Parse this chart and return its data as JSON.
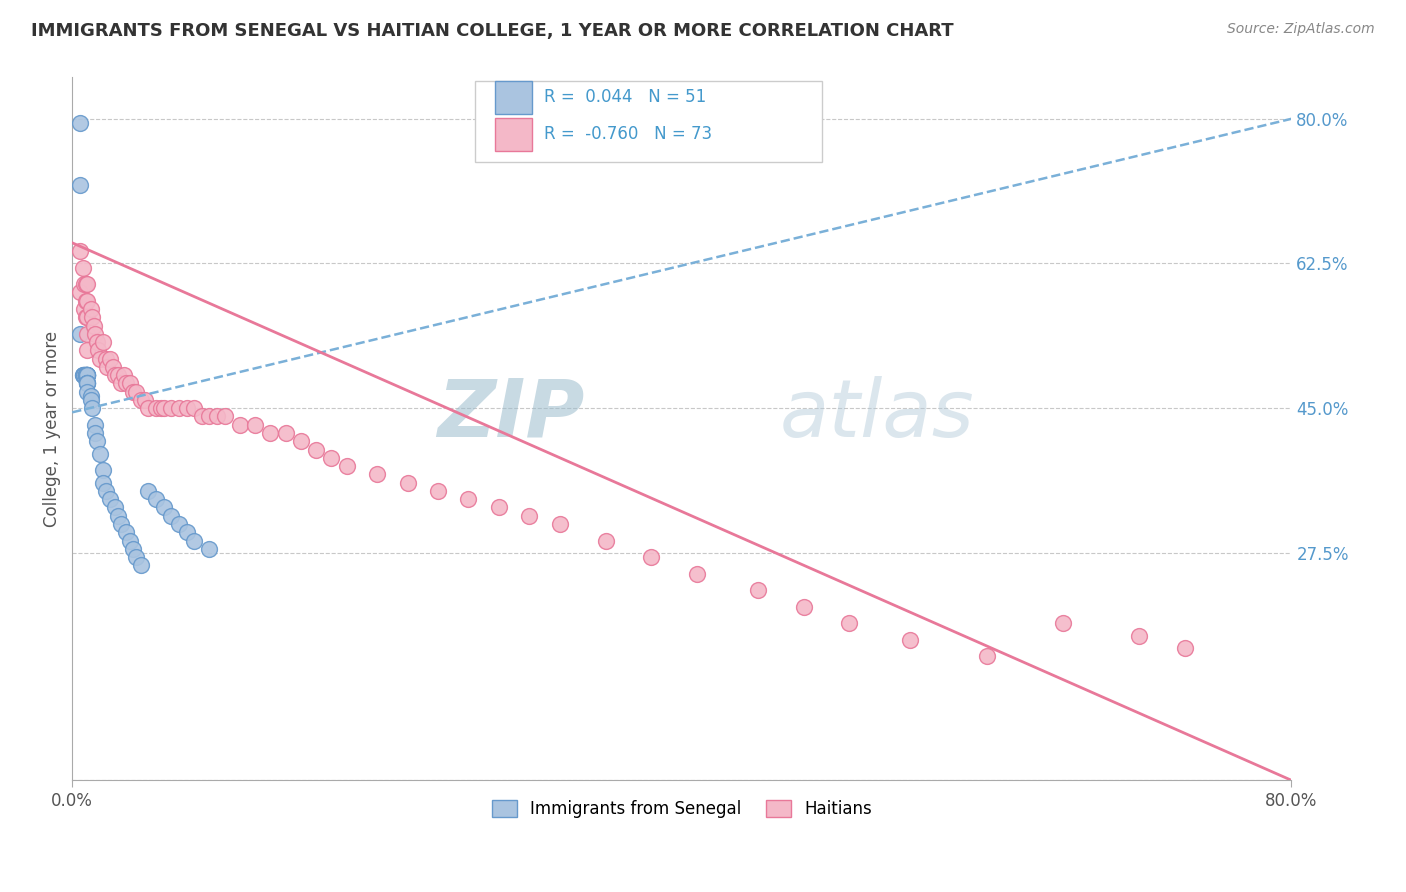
{
  "title": "IMMIGRANTS FROM SENEGAL VS HAITIAN COLLEGE, 1 YEAR OR MORE CORRELATION CHART",
  "source": "Source: ZipAtlas.com",
  "ylabel": "College, 1 year or more",
  "xlim": [
    0,
    0.8
  ],
  "ylim": [
    0,
    0.85
  ],
  "yticks_right": [
    0.0,
    0.275,
    0.45,
    0.625,
    0.8
  ],
  "yticklabels_right": [
    "",
    "27.5%",
    "45.0%",
    "62.5%",
    "80.0%"
  ],
  "grid_color": "#c8c8c8",
  "background_color": "#ffffff",
  "series1_label": "Immigrants from Senegal",
  "series1_color": "#aac4e0",
  "series1_edge_color": "#6699cc",
  "series1_R": "0.044",
  "series1_N": "51",
  "series2_label": "Haitians",
  "series2_color": "#f4b8c8",
  "series2_edge_color": "#e87899",
  "series2_R": "-0.760",
  "series2_N": "73",
  "watermark_color": "#ccdde8",
  "trendline1_color": "#7ab0d8",
  "trendline2_color": "#e87899",
  "series1_x": [
    0.005,
    0.005,
    0.005,
    0.007,
    0.007,
    0.008,
    0.008,
    0.008,
    0.009,
    0.009,
    0.009,
    0.009,
    0.009,
    0.01,
    0.01,
    0.01,
    0.01,
    0.01,
    0.01,
    0.01,
    0.01,
    0.01,
    0.01,
    0.01,
    0.012,
    0.012,
    0.013,
    0.015,
    0.015,
    0.016,
    0.018,
    0.02,
    0.02,
    0.022,
    0.025,
    0.028,
    0.03,
    0.032,
    0.035,
    0.038,
    0.04,
    0.042,
    0.045,
    0.05,
    0.055,
    0.06,
    0.065,
    0.07,
    0.075,
    0.08,
    0.09
  ],
  "series1_y": [
    0.795,
    0.72,
    0.54,
    0.49,
    0.49,
    0.49,
    0.49,
    0.49,
    0.49,
    0.49,
    0.49,
    0.49,
    0.49,
    0.49,
    0.49,
    0.49,
    0.49,
    0.49,
    0.49,
    0.48,
    0.48,
    0.48,
    0.48,
    0.47,
    0.465,
    0.46,
    0.45,
    0.43,
    0.42,
    0.41,
    0.395,
    0.375,
    0.36,
    0.35,
    0.34,
    0.33,
    0.32,
    0.31,
    0.3,
    0.29,
    0.28,
    0.27,
    0.26,
    0.35,
    0.34,
    0.33,
    0.32,
    0.31,
    0.3,
    0.29,
    0.28
  ],
  "series2_x": [
    0.005,
    0.005,
    0.007,
    0.008,
    0.008,
    0.009,
    0.009,
    0.009,
    0.01,
    0.01,
    0.01,
    0.01,
    0.01,
    0.012,
    0.013,
    0.014,
    0.015,
    0.016,
    0.017,
    0.018,
    0.02,
    0.022,
    0.023,
    0.025,
    0.027,
    0.028,
    0.03,
    0.032,
    0.034,
    0.035,
    0.038,
    0.04,
    0.042,
    0.045,
    0.048,
    0.05,
    0.055,
    0.058,
    0.06,
    0.065,
    0.07,
    0.075,
    0.08,
    0.085,
    0.09,
    0.095,
    0.1,
    0.11,
    0.12,
    0.13,
    0.14,
    0.15,
    0.16,
    0.17,
    0.18,
    0.2,
    0.22,
    0.24,
    0.26,
    0.28,
    0.3,
    0.32,
    0.35,
    0.38,
    0.41,
    0.45,
    0.48,
    0.51,
    0.55,
    0.6,
    0.65,
    0.7,
    0.73
  ],
  "series2_y": [
    0.64,
    0.59,
    0.62,
    0.6,
    0.57,
    0.6,
    0.58,
    0.56,
    0.6,
    0.58,
    0.56,
    0.54,
    0.52,
    0.57,
    0.56,
    0.55,
    0.54,
    0.53,
    0.52,
    0.51,
    0.53,
    0.51,
    0.5,
    0.51,
    0.5,
    0.49,
    0.49,
    0.48,
    0.49,
    0.48,
    0.48,
    0.47,
    0.47,
    0.46,
    0.46,
    0.45,
    0.45,
    0.45,
    0.45,
    0.45,
    0.45,
    0.45,
    0.45,
    0.44,
    0.44,
    0.44,
    0.44,
    0.43,
    0.43,
    0.42,
    0.42,
    0.41,
    0.4,
    0.39,
    0.38,
    0.37,
    0.36,
    0.35,
    0.34,
    0.33,
    0.32,
    0.31,
    0.29,
    0.27,
    0.25,
    0.23,
    0.21,
    0.19,
    0.17,
    0.15,
    0.19,
    0.175,
    0.16
  ],
  "trendline1_x0": 0.0,
  "trendline1_y0": 0.445,
  "trendline1_x1": 0.8,
  "trendline1_y1": 0.8,
  "trendline2_x0": 0.0,
  "trendline2_y0": 0.65,
  "trendline2_x1": 0.8,
  "trendline2_y1": 0.0
}
